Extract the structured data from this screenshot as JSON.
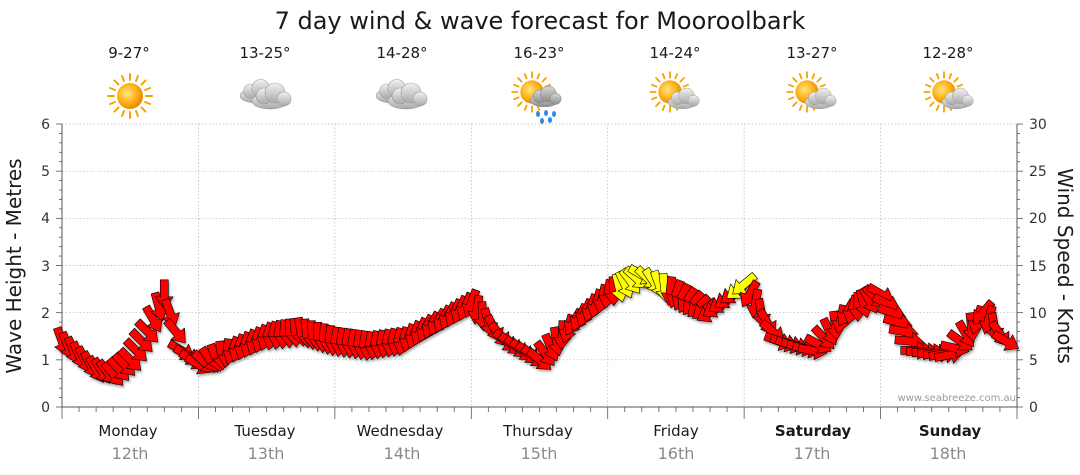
{
  "chart_data": {
    "type": "wind-wave-forecast",
    "title": "7 day wind & wave forecast for Mooroolbark",
    "ylabel_left": "Wave Height - Metres",
    "ylabel_right": "Wind Speed - Knots",
    "ylim_left": [
      0,
      6
    ],
    "ylim_right": [
      0,
      30
    ],
    "left_ticks": [
      "0",
      "1",
      "2",
      "3",
      "4",
      "5",
      "6"
    ],
    "right_ticks": [
      "0",
      "5",
      "10",
      "15",
      "20",
      "25",
      "30"
    ],
    "grid": true,
    "credit": "www.seabreeze.com.au",
    "colors": {
      "moderate": "#ff0000",
      "strong": "#ffff00",
      "outline": "#000000"
    },
    "days": [
      {
        "name": "Monday",
        "date": "12th",
        "temp": "9-27°",
        "icon": "sunny-icon",
        "bold": false
      },
      {
        "name": "Tuesday",
        "date": "13th",
        "temp": "13-25°",
        "icon": "cloudy-icon",
        "bold": false
      },
      {
        "name": "Wednesday",
        "date": "14th",
        "temp": "14-28°",
        "icon": "cloudy-icon",
        "bold": false
      },
      {
        "name": "Thursday",
        "date": "15th",
        "temp": "16-23°",
        "icon": "rain-icon",
        "bold": false
      },
      {
        "name": "Friday",
        "date": "16th",
        "temp": "14-24°",
        "icon": "partly-cloudy-icon",
        "bold": false
      },
      {
        "name": "Saturday",
        "date": "17th",
        "temp": "13-27°",
        "icon": "partly-cloudy-icon",
        "bold": true
      },
      {
        "name": "Sunday",
        "date": "18th",
        "temp": "12-28°",
        "icon": "partly-cloudy-icon",
        "bold": true
      }
    ],
    "wind_hours": [
      0,
      6,
      9,
      12,
      15,
      18,
      21,
      24,
      30,
      36,
      42,
      48,
      54,
      60,
      66,
      72,
      78,
      84,
      90,
      96,
      102,
      108,
      114,
      120,
      126,
      132,
      138,
      144,
      150,
      156,
      162,
      166
    ],
    "wind_speed_knots": [
      7,
      4,
      3.5,
      5,
      8,
      12,
      6,
      4.5,
      6,
      7.5,
      8,
      7,
      6.5,
      7,
      9,
      11,
      7,
      5,
      9,
      12,
      14,
      12,
      10,
      13,
      7,
      6,
      10,
      12,
      6,
      5.5,
      10,
      7
    ],
    "wind_direction_deg": [
      340,
      330,
      320,
      315,
      315,
      0,
      300,
      300,
      20,
      20,
      350,
      10,
      10,
      15,
      30,
      20,
      310,
      310,
      30,
      10,
      300,
      20,
      60,
      50,
      290,
      280,
      30,
      300,
      270,
      260,
      40,
      300
    ]
  }
}
